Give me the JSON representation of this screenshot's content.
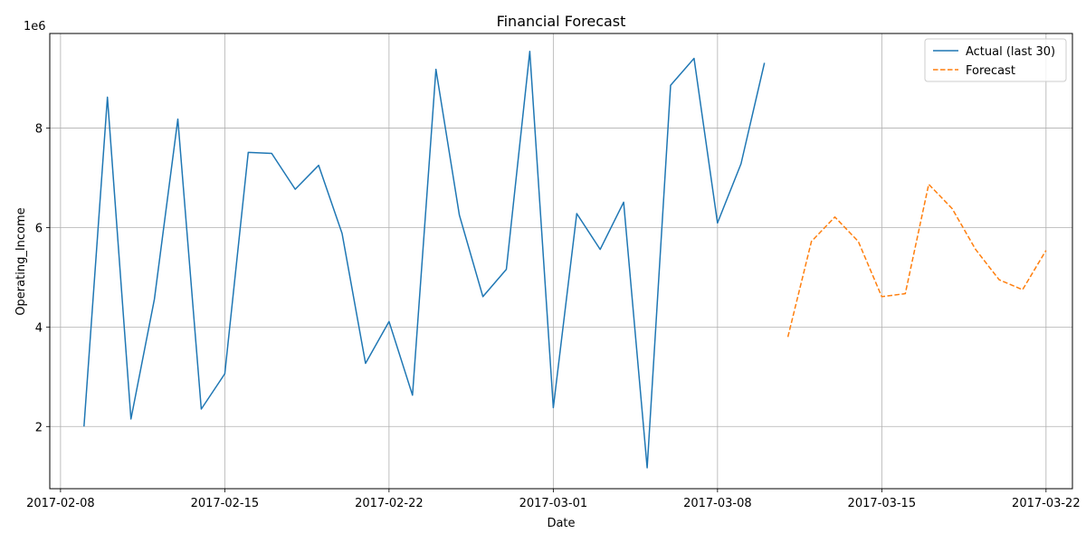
{
  "chart_data": {
    "type": "line",
    "title": "Financial Forecast",
    "xlabel": "Date",
    "ylabel": "Operating_Income",
    "y_offset_label": "1e6",
    "ylim": [
      750000,
      9900000
    ],
    "xlim": [
      "2017-02-07T13:00",
      "2017-03-23T03:00"
    ],
    "x_ticks": [
      "2017-02-08",
      "2017-02-15",
      "2017-02-22",
      "2017-03-01",
      "2017-03-08",
      "2017-03-15",
      "2017-03-22"
    ],
    "y_ticks": [
      2000000,
      4000000,
      6000000,
      8000000
    ],
    "y_tick_labels": [
      "2",
      "4",
      "6",
      "8"
    ],
    "grid": true,
    "legend_position": "top-right",
    "series": [
      {
        "name": "Actual (last 30)",
        "color": "#1f77b4",
        "style": "solid",
        "x": [
          "2017-02-09",
          "2017-02-10",
          "2017-02-11",
          "2017-02-12",
          "2017-02-13",
          "2017-02-14",
          "2017-02-15",
          "2017-02-16",
          "2017-02-17",
          "2017-02-18",
          "2017-02-19",
          "2017-02-20",
          "2017-02-21",
          "2017-02-22",
          "2017-02-23",
          "2017-02-24",
          "2017-02-25",
          "2017-02-26",
          "2017-02-27",
          "2017-02-28",
          "2017-03-01",
          "2017-03-02",
          "2017-03-03",
          "2017-03-04",
          "2017-03-05",
          "2017-03-06",
          "2017-03-07",
          "2017-03-08",
          "2017-03-09",
          "2017-03-10"
        ],
        "values": [
          2000000,
          8620000,
          2150000,
          4560000,
          8180000,
          2350000,
          3060000,
          7510000,
          7490000,
          6770000,
          7250000,
          5880000,
          3270000,
          4110000,
          2630000,
          9180000,
          6250000,
          4610000,
          5160000,
          9540000,
          2380000,
          6280000,
          5560000,
          6510000,
          1170000,
          8860000,
          9400000,
          6090000,
          7280000,
          9310000
        ]
      },
      {
        "name": "Forecast",
        "color": "#ff7f0e",
        "style": "dashed",
        "x": [
          "2017-03-11",
          "2017-03-12",
          "2017-03-13",
          "2017-03-14",
          "2017-03-15",
          "2017-03-16",
          "2017-03-17",
          "2017-03-18",
          "2017-03-19",
          "2017-03-20",
          "2017-03-21",
          "2017-03-22"
        ],
        "values": [
          3800000,
          5720000,
          6210000,
          5720000,
          4610000,
          4670000,
          6870000,
          6380000,
          5560000,
          4950000,
          4750000,
          5540000
        ]
      }
    ]
  }
}
